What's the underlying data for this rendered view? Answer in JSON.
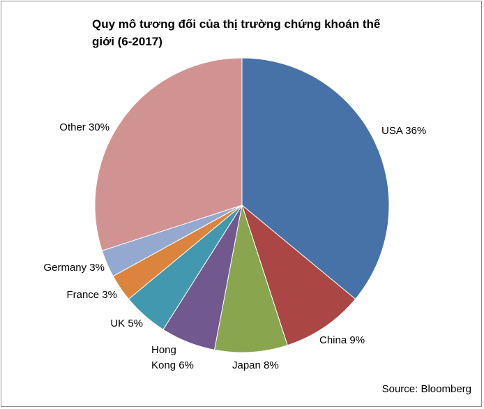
{
  "chart_data": {
    "type": "pie",
    "title": "Quy mô tương đối của thị trường chứng khoán thế giới (6-2017)",
    "source": "Source: Bloomberg",
    "start_angle": "top",
    "direction": "clockwise",
    "slices": [
      {
        "name": "USA",
        "value": 36,
        "color": "#4672A8",
        "label": [
          "USA 36%"
        ]
      },
      {
        "name": "China",
        "value": 9,
        "color": "#AA4643",
        "label": [
          "China 9%"
        ]
      },
      {
        "name": "Japan",
        "value": 8,
        "color": "#89A54E",
        "label": [
          "Japan 8%"
        ]
      },
      {
        "name": "Hong Kong",
        "value": 6,
        "color": "#71588F",
        "label": [
          "Hong",
          "Kong 6%"
        ]
      },
      {
        "name": "UK",
        "value": 5,
        "color": "#4198AF",
        "label": [
          "UK 5%"
        ]
      },
      {
        "name": "France",
        "value": 3,
        "color": "#DB843D",
        "label": [
          "France 3%"
        ]
      },
      {
        "name": "Germany",
        "value": 3,
        "color": "#93A9CF",
        "label": [
          "Germany 3%"
        ]
      },
      {
        "name": "Other",
        "value": 30,
        "color": "#D19392",
        "label": [
          "Other 30%"
        ]
      }
    ]
  }
}
